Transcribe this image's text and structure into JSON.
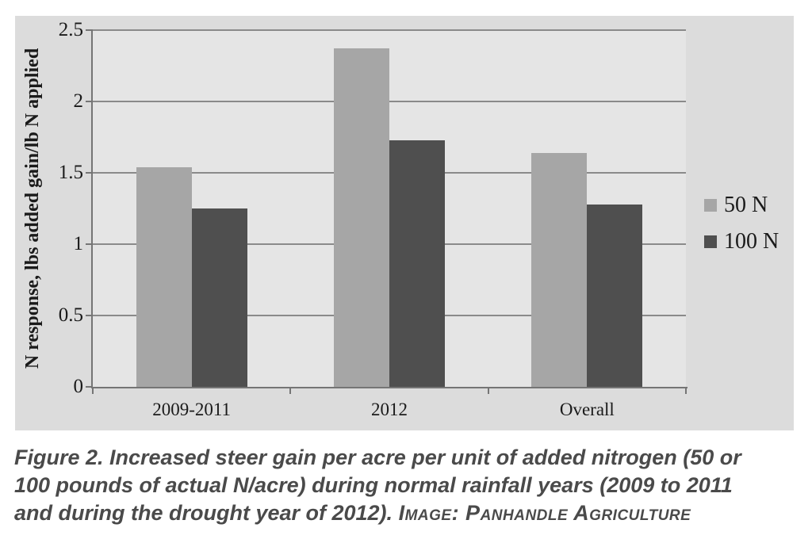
{
  "chart_data": {
    "type": "bar",
    "title": "",
    "categories": [
      "2009-2011",
      "2012",
      "Overall"
    ],
    "series": [
      {
        "name": "50 N",
        "color": "#a6a6a6",
        "values": [
          1.54,
          2.37,
          1.64
        ]
      },
      {
        "name": "100 N",
        "color": "#4f4f4f",
        "values": [
          1.25,
          1.73,
          1.28
        ]
      }
    ],
    "xlabel": "",
    "ylabel": "N response, lbs added gain/lb N applied",
    "ylim": [
      0,
      2.5
    ],
    "yticks": [
      0,
      0.5,
      1,
      1.5,
      2,
      2.5
    ],
    "ytick_labels": [
      "0",
      "0.5",
      "1",
      "1.5",
      "2",
      "2.5"
    ],
    "grid": true,
    "legend_position": "right",
    "panel_bg": "#dcdcdc",
    "plot_bg": "#e5e5e5",
    "gridline_color": "#8a8a8a",
    "axis_color": "#757575"
  },
  "caption": {
    "line1": "Figure 2. Increased steer gain per acre per unit of added nitrogen (50 or",
    "line2": "100 pounds of actual N/acre) during normal rainfall years (2009 to 2011",
    "line3": "and during the drought year of 2012). ",
    "source": "Image: Panhandle Agriculture",
    "color": "#4a4a4a"
  }
}
